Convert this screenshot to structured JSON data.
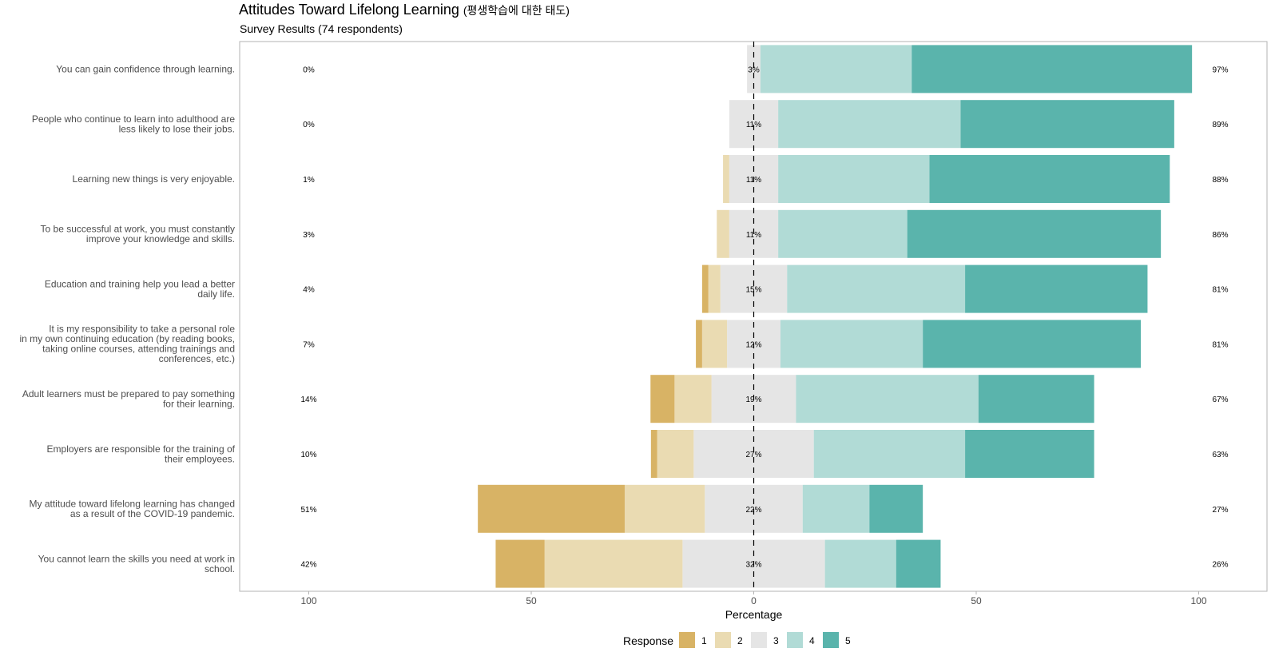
{
  "header": {
    "title": "Attitudes Toward Lifelong Learning",
    "title_ko": "(평생학습에 대한 태도)",
    "subtitle": "Survey Results (74 respondents)"
  },
  "chart_data": {
    "type": "bar",
    "orientation": "horizontal",
    "stacked": "diverging",
    "title": "Attitudes Toward Lifelong Learning (평생학습에 대한 태도)",
    "subtitle": "Survey Results (74 respondents)",
    "xlabel": "Percentage",
    "ylabel": "",
    "xlim": [
      -100,
      100
    ],
    "xticks": [
      -100,
      -50,
      0,
      50,
      100
    ],
    "xtick_labels": [
      "100",
      "50",
      "0",
      "50",
      "100"
    ],
    "legend": {
      "title": "Response",
      "position": "bottom",
      "labels": [
        "1",
        "2",
        "3",
        "4",
        "5"
      ],
      "colors": [
        "#D8B365",
        "#EADBB2",
        "#E5E5E5",
        "#B1DBD6",
        "#5AB4AC"
      ]
    },
    "categories": [
      [
        "You can gain confidence through learning."
      ],
      [
        "People who continue to learn into adulthood are",
        "less likely to lose their jobs."
      ],
      [
        "Learning new things is very enjoyable."
      ],
      [
        "To be successful at work, you must constantly",
        "improve your knowledge and skills."
      ],
      [
        "Education and training help you lead a better",
        "daily life."
      ],
      [
        "It is my responsibility to take a personal role",
        "in my own continuing education (by reading books,",
        "taking online courses, attending trainings and",
        "conferences, etc.)"
      ],
      [
        "Adult learners must be prepared to pay something",
        "for their learning."
      ],
      [
        "Employers are responsible for the training of",
        "their employees."
      ],
      [
        "My attitude toward lifelong learning has changed",
        "as a result of the COVID-19 pandemic."
      ],
      [
        "You cannot learn the skills you need at work in",
        "school."
      ]
    ],
    "series": [
      {
        "name": "1",
        "values": [
          0,
          0,
          0,
          0,
          1.4,
          1.4,
          5.4,
          1.4,
          33.0,
          11.0
        ]
      },
      {
        "name": "2",
        "values": [
          0,
          0,
          1.4,
          2.8,
          2.7,
          5.6,
          8.3,
          8.2,
          18.0,
          31.0
        ]
      },
      {
        "name": "3",
        "values": [
          3,
          11,
          11,
          11,
          15,
          12,
          19,
          27,
          22,
          32
        ]
      },
      {
        "name": "4",
        "values": [
          34,
          41,
          34,
          29,
          40,
          32,
          41,
          34,
          15,
          16
        ]
      },
      {
        "name": "5",
        "values": [
          63,
          48,
          54,
          57,
          41,
          49,
          26,
          29,
          12,
          10
        ]
      }
    ],
    "left_labels": [
      "0%",
      "0%",
      "1%",
      "3%",
      "4%",
      "7%",
      "14%",
      "10%",
      "51%",
      "42%"
    ],
    "center_labels": [
      "3%",
      "11%",
      "11%",
      "11%",
      "15%",
      "12%",
      "19%",
      "27%",
      "22%",
      "32%"
    ],
    "right_labels": [
      "97%",
      "89%",
      "88%",
      "86%",
      "81%",
      "81%",
      "67%",
      "63%",
      "27%",
      "26%"
    ]
  }
}
